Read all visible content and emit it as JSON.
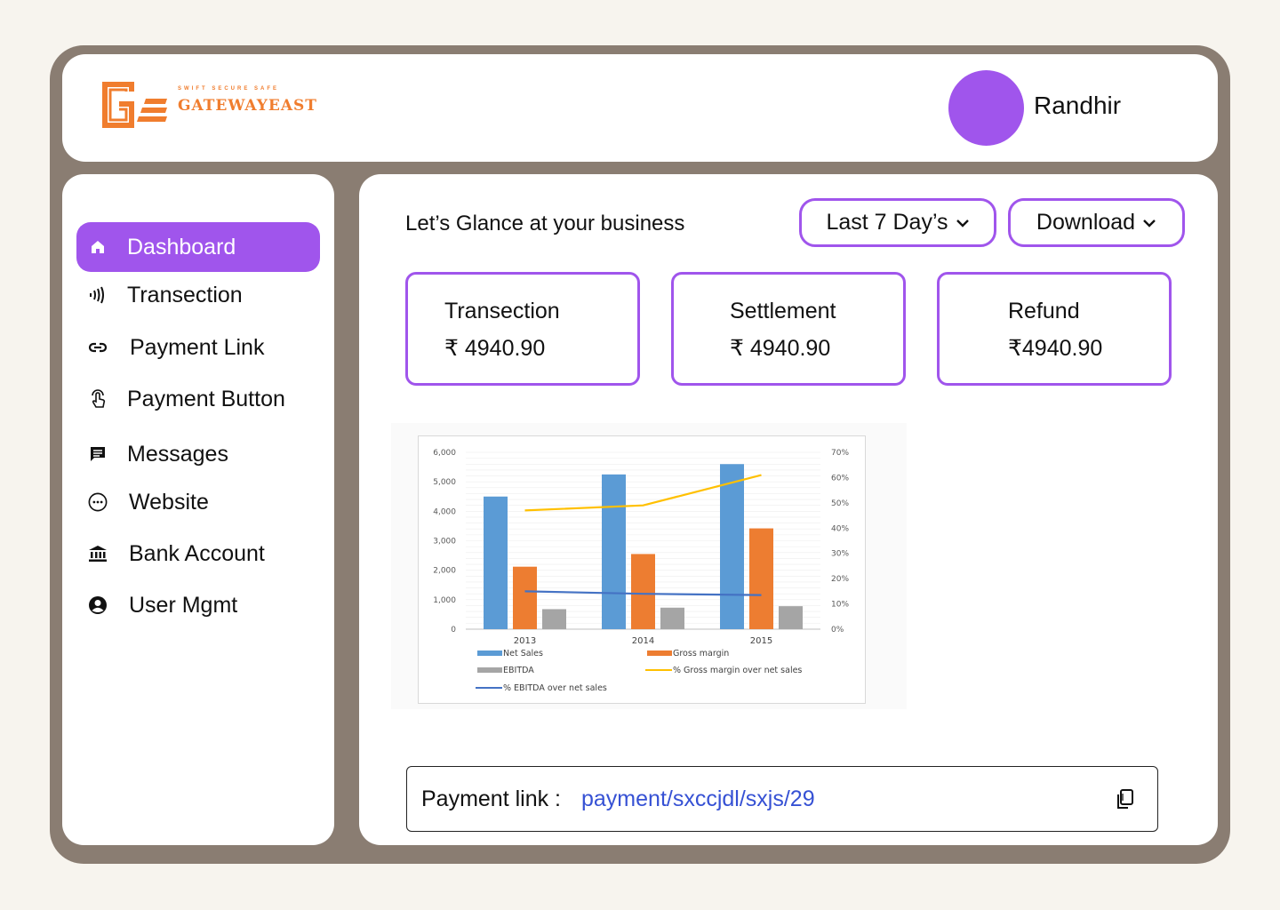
{
  "brand": {
    "tagline": "SWIFT SECURE SAFE",
    "name": "GATEWAYEAST",
    "color": "#f07d2e"
  },
  "user": {
    "name": "Randhir",
    "avatar_color": "#a055ec"
  },
  "accent": "#a055ec",
  "sidebar": {
    "items": [
      {
        "label": "Dashboard",
        "icon": "home-icon",
        "active": true
      },
      {
        "label": "Transection",
        "icon": "contactless-icon"
      },
      {
        "label": "Payment Link",
        "icon": "link-icon"
      },
      {
        "label": "Payment Button",
        "icon": "touch-icon"
      },
      {
        "label": "Messages",
        "icon": "message-icon"
      },
      {
        "label": "Website",
        "icon": "website-icon"
      },
      {
        "label": "Bank Account",
        "icon": "bank-icon"
      },
      {
        "label": "User Mgmt",
        "icon": "user-icon"
      }
    ]
  },
  "main": {
    "heading": "Let’s Glance at your business",
    "range_label": "Last 7 Day’s",
    "download_label": "Download",
    "cards": [
      {
        "label": "Transection",
        "value": "₹ 4940.90"
      },
      {
        "label": "Settlement",
        "value": "₹ 4940.90"
      },
      {
        "label": "Refund",
        "value": "₹4940.90"
      }
    ],
    "payment_link": {
      "label": "Payment link :",
      "url": "payment/sxccjdl/sxjs/29"
    }
  },
  "chart_data": {
    "type": "bar",
    "categories": [
      "2013",
      "2014",
      "2015"
    ],
    "series": [
      {
        "name": "Net Sales",
        "kind": "bar",
        "axis": "left",
        "color": "#5b9bd5",
        "values": [
          4500,
          5250,
          5600
        ]
      },
      {
        "name": "Gross margin",
        "kind": "bar",
        "axis": "left",
        "color": "#ed7d31",
        "values": [
          2120,
          2550,
          3420
        ]
      },
      {
        "name": "EBITDA",
        "kind": "bar",
        "axis": "left",
        "color": "#a5a5a5",
        "values": [
          680,
          730,
          780
        ]
      },
      {
        "name": "% Gross margin over net sales",
        "kind": "line",
        "axis": "right",
        "color": "#ffc000",
        "values": [
          47,
          49,
          61
        ]
      },
      {
        "name": "% EBITDA over net sales",
        "kind": "line",
        "axis": "right",
        "color": "#4472c4",
        "values": [
          15,
          14,
          13.5
        ]
      }
    ],
    "yticks": [
      "6,000",
      "5,000",
      "4,000",
      "3,000",
      "2,000",
      "1,000",
      "0"
    ],
    "y2ticks": [
      "70%",
      "60%",
      "50%",
      "40%",
      "30%",
      "20%",
      "10%",
      "0%"
    ],
    "ylim": [
      0,
      6000
    ],
    "y2lim": [
      0,
      70
    ],
    "grid": true,
    "legend_position": "bottom"
  }
}
